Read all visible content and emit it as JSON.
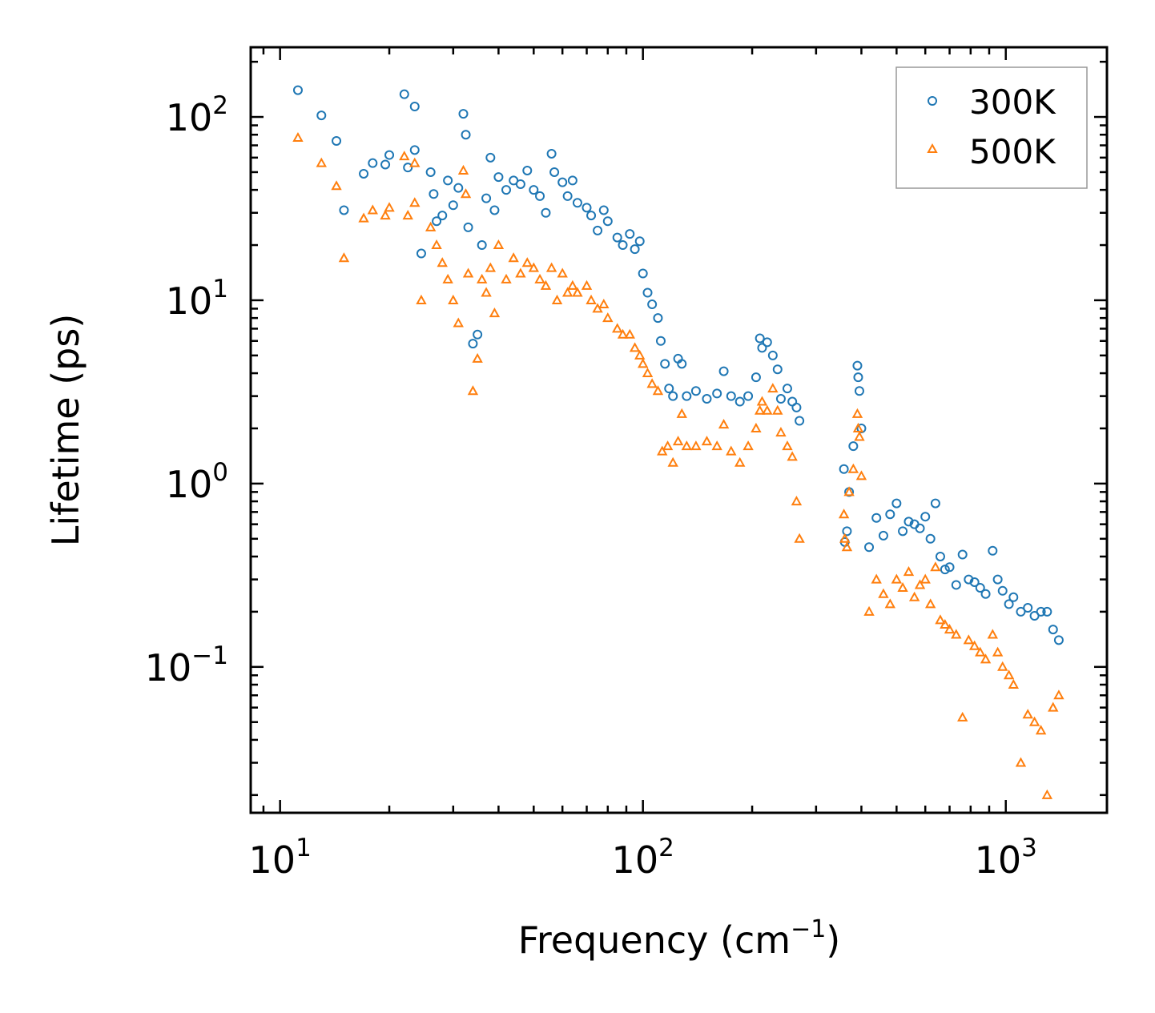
{
  "chart_data": {
    "type": "scatter",
    "title": "",
    "xlabel": "Frequency (cm",
    "xlabel_sup": "−1",
    "xlabel_end": ")",
    "ylabel": "Lifetime (ps)",
    "xscale": "log",
    "yscale": "log",
    "xlim": [
      8.3,
      1900
    ],
    "ylim": [
      0.016,
      240
    ],
    "x_ticks": [
      {
        "value": 10,
        "base": "10",
        "exp": "1"
      },
      {
        "value": 100,
        "base": "10",
        "exp": "2"
      },
      {
        "value": 1000,
        "base": "10",
        "exp": "3"
      }
    ],
    "y_ticks": [
      {
        "value": 0.1,
        "base": "10",
        "exp": "−1"
      },
      {
        "value": 1,
        "base": "10",
        "exp": "0"
      },
      {
        "value": 10,
        "base": "10",
        "exp": "1"
      },
      {
        "value": 100,
        "base": "10",
        "exp": "2"
      }
    ],
    "legend_position": "top-right",
    "series": [
      {
        "name": "300K",
        "marker": "circle",
        "color": "#1f77b4",
        "points": [
          [
            11.2,
            140
          ],
          [
            13,
            102
          ],
          [
            14.3,
            74
          ],
          [
            15,
            31
          ],
          [
            17,
            49
          ],
          [
            18,
            56
          ],
          [
            19.5,
            55
          ],
          [
            20,
            62
          ],
          [
            22,
            133
          ],
          [
            22.5,
            53
          ],
          [
            23.5,
            114
          ],
          [
            23.5,
            66
          ],
          [
            24.5,
            18
          ],
          [
            26,
            50
          ],
          [
            26.5,
            38
          ],
          [
            27,
            27
          ],
          [
            28,
            29
          ],
          [
            29,
            45
          ],
          [
            30,
            33
          ],
          [
            31,
            41
          ],
          [
            32,
            104
          ],
          [
            32.5,
            80
          ],
          [
            33,
            25
          ],
          [
            34,
            5.8
          ],
          [
            35,
            6.5
          ],
          [
            36,
            20
          ],
          [
            37,
            36
          ],
          [
            38,
            60
          ],
          [
            39,
            31
          ],
          [
            40,
            47
          ],
          [
            42,
            40
          ],
          [
            44,
            45
          ],
          [
            46,
            43
          ],
          [
            48,
            51
          ],
          [
            50,
            40
          ],
          [
            52,
            37
          ],
          [
            54,
            30
          ],
          [
            56,
            63
          ],
          [
            57,
            50
          ],
          [
            60,
            44
          ],
          [
            62,
            37
          ],
          [
            64,
            45
          ],
          [
            66,
            34
          ],
          [
            70,
            32
          ],
          [
            72,
            29
          ],
          [
            75,
            24
          ],
          [
            78,
            31
          ],
          [
            80,
            27
          ],
          [
            85,
            22
          ],
          [
            88,
            20
          ],
          [
            92,
            23
          ],
          [
            95,
            19
          ],
          [
            98,
            21
          ],
          [
            100,
            14
          ],
          [
            103,
            11
          ],
          [
            106,
            9.5
          ],
          [
            110,
            8
          ],
          [
            112,
            6
          ],
          [
            115,
            4.5
          ],
          [
            118,
            3.3
          ],
          [
            121,
            3
          ],
          [
            125,
            4.8
          ],
          [
            128,
            4.5
          ],
          [
            132,
            3
          ],
          [
            140,
            3.2
          ],
          [
            150,
            2.9
          ],
          [
            160,
            3.1
          ],
          [
            167,
            4.1
          ],
          [
            175,
            3
          ],
          [
            185,
            2.8
          ],
          [
            195,
            3
          ],
          [
            205,
            3.8
          ],
          [
            210,
            6.2
          ],
          [
            213,
            5.5
          ],
          [
            220,
            5.9
          ],
          [
            228,
            5
          ],
          [
            235,
            4.2
          ],
          [
            240,
            2.9
          ],
          [
            250,
            3.3
          ],
          [
            258,
            2.8
          ],
          [
            265,
            2.6
          ],
          [
            270,
            2.2
          ],
          [
            358,
            1.2
          ],
          [
            360,
            0.48
          ],
          [
            365,
            0.55
          ],
          [
            370,
            0.9
          ],
          [
            380,
            1.6
          ],
          [
            390,
            4.4
          ],
          [
            392,
            3.8
          ],
          [
            395,
            3.2
          ],
          [
            400,
            2
          ],
          [
            420,
            0.45
          ],
          [
            440,
            0.65
          ],
          [
            460,
            0.52
          ],
          [
            480,
            0.68
          ],
          [
            500,
            0.78
          ],
          [
            520,
            0.55
          ],
          [
            540,
            0.62
          ],
          [
            560,
            0.6
          ],
          [
            580,
            0.57
          ],
          [
            600,
            0.66
          ],
          [
            620,
            0.5
          ],
          [
            640,
            0.78
          ],
          [
            660,
            0.4
          ],
          [
            680,
            0.34
          ],
          [
            700,
            0.35
          ],
          [
            730,
            0.28
          ],
          [
            760,
            0.41
          ],
          [
            790,
            0.3
          ],
          [
            820,
            0.29
          ],
          [
            850,
            0.27
          ],
          [
            880,
            0.25
          ],
          [
            920,
            0.43
          ],
          [
            950,
            0.3
          ],
          [
            980,
            0.26
          ],
          [
            1020,
            0.22
          ],
          [
            1050,
            0.24
          ],
          [
            1100,
            0.2
          ],
          [
            1150,
            0.21
          ],
          [
            1200,
            0.19
          ],
          [
            1250,
            0.2
          ],
          [
            1300,
            0.2
          ],
          [
            1350,
            0.16
          ],
          [
            1400,
            0.14
          ]
        ]
      },
      {
        "name": "500K",
        "marker": "triangle",
        "color": "#ff7f0e",
        "points": [
          [
            11.2,
            77
          ],
          [
            13,
            56
          ],
          [
            14.3,
            42
          ],
          [
            15,
            17
          ],
          [
            17,
            28
          ],
          [
            18,
            31
          ],
          [
            19.5,
            29
          ],
          [
            20,
            32
          ],
          [
            22,
            61
          ],
          [
            22.5,
            29
          ],
          [
            23.5,
            56
          ],
          [
            23.5,
            34
          ],
          [
            24.5,
            10
          ],
          [
            26,
            25
          ],
          [
            27,
            20
          ],
          [
            28,
            16
          ],
          [
            29,
            13
          ],
          [
            30,
            10
          ],
          [
            31,
            7.5
          ],
          [
            32,
            51
          ],
          [
            32.5,
            38
          ],
          [
            33,
            14
          ],
          [
            34,
            3.2
          ],
          [
            35,
            4.8
          ],
          [
            36,
            13
          ],
          [
            37,
            11
          ],
          [
            38,
            15
          ],
          [
            39,
            8.5
          ],
          [
            40,
            20
          ],
          [
            42,
            13
          ],
          [
            44,
            17
          ],
          [
            46,
            14
          ],
          [
            48,
            16
          ],
          [
            50,
            15
          ],
          [
            52,
            13
          ],
          [
            54,
            12
          ],
          [
            56,
            15
          ],
          [
            58,
            10
          ],
          [
            60,
            14
          ],
          [
            62,
            11
          ],
          [
            64,
            12
          ],
          [
            66,
            11
          ],
          [
            70,
            12
          ],
          [
            72,
            10
          ],
          [
            75,
            9
          ],
          [
            78,
            9.5
          ],
          [
            80,
            8
          ],
          [
            85,
            7
          ],
          [
            88,
            6.5
          ],
          [
            92,
            6.5
          ],
          [
            95,
            5.5
          ],
          [
            98,
            5
          ],
          [
            100,
            4.5
          ],
          [
            103,
            4
          ],
          [
            106,
            3.5
          ],
          [
            110,
            3.2
          ],
          [
            113,
            1.5
          ],
          [
            117,
            1.6
          ],
          [
            121,
            1.3
          ],
          [
            125,
            1.7
          ],
          [
            128,
            2.4
          ],
          [
            132,
            1.6
          ],
          [
            140,
            1.6
          ],
          [
            150,
            1.7
          ],
          [
            160,
            1.6
          ],
          [
            167,
            2.1
          ],
          [
            175,
            1.5
          ],
          [
            185,
            1.3
          ],
          [
            195,
            1.6
          ],
          [
            205,
            2
          ],
          [
            210,
            2.5
          ],
          [
            213,
            2.8
          ],
          [
            220,
            2.5
          ],
          [
            228,
            3.3
          ],
          [
            235,
            2.5
          ],
          [
            240,
            1.9
          ],
          [
            250,
            1.6
          ],
          [
            258,
            1.4
          ],
          [
            265,
            0.8
          ],
          [
            270,
            0.5
          ],
          [
            358,
            0.68
          ],
          [
            360,
            0.5
          ],
          [
            365,
            0.45
          ],
          [
            370,
            0.9
          ],
          [
            380,
            1.2
          ],
          [
            390,
            2.4
          ],
          [
            392,
            2
          ],
          [
            395,
            1.8
          ],
          [
            400,
            1.1
          ],
          [
            420,
            0.2
          ],
          [
            440,
            0.3
          ],
          [
            460,
            0.25
          ],
          [
            480,
            0.22
          ],
          [
            500,
            0.3
          ],
          [
            520,
            0.27
          ],
          [
            540,
            0.33
          ],
          [
            560,
            0.24
          ],
          [
            580,
            0.28
          ],
          [
            600,
            0.3
          ],
          [
            620,
            0.22
          ],
          [
            640,
            0.35
          ],
          [
            660,
            0.18
          ],
          [
            680,
            0.17
          ],
          [
            700,
            0.16
          ],
          [
            730,
            0.15
          ],
          [
            760,
            0.053
          ],
          [
            790,
            0.14
          ],
          [
            820,
            0.13
          ],
          [
            850,
            0.12
          ],
          [
            880,
            0.11
          ],
          [
            920,
            0.15
          ],
          [
            950,
            0.12
          ],
          [
            980,
            0.1
          ],
          [
            1020,
            0.09
          ],
          [
            1050,
            0.08
          ],
          [
            1100,
            0.03
          ],
          [
            1150,
            0.055
          ],
          [
            1200,
            0.05
          ],
          [
            1250,
            0.045
          ],
          [
            1300,
            0.02
          ],
          [
            1350,
            0.06
          ],
          [
            1400,
            0.07
          ]
        ]
      }
    ]
  }
}
